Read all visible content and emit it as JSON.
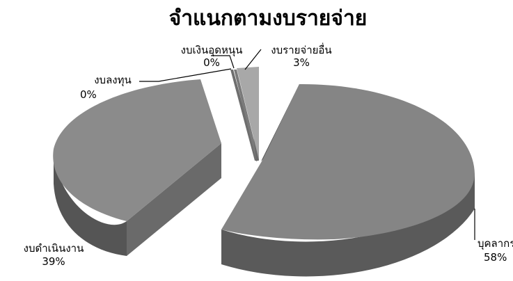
{
  "chart_data": {
    "type": "pie",
    "style": "3d-exploded",
    "title": "จำแนกตามงบรายจ่าย",
    "slices": [
      {
        "name": "บุคลากร",
        "pct_label": "58%",
        "value": 58,
        "color": "#858585"
      },
      {
        "name": "งบดำเนินงาน",
        "pct_label": "39%",
        "value": 39,
        "color": "#8b8b8b"
      },
      {
        "name": "งบลงทุน",
        "pct_label": "0%",
        "value": 0,
        "color": "#6e6e6e"
      },
      {
        "name": "งบเงินอุดหนุน",
        "pct_label": "0%",
        "value": 0,
        "color": "#7a7a7a"
      },
      {
        "name": "งบรายจ่ายอื่น",
        "pct_label": "3%",
        "value": 3,
        "color": "#a8a8a8"
      }
    ]
  }
}
